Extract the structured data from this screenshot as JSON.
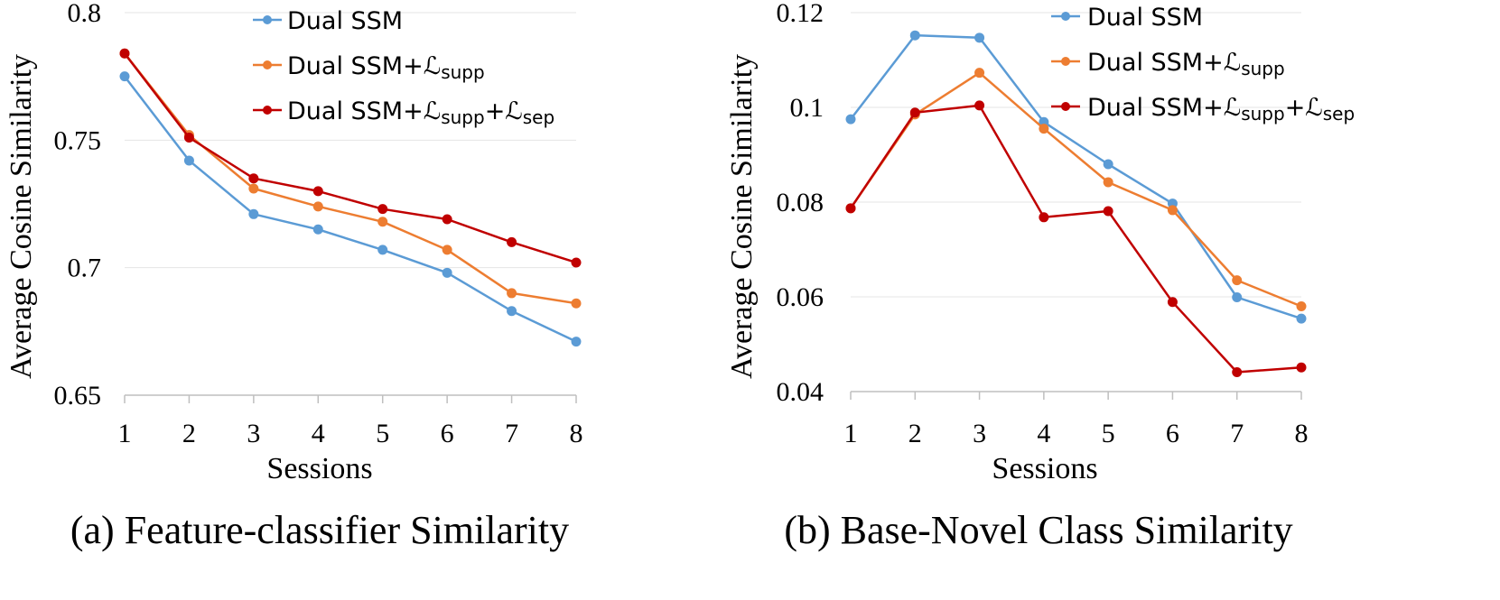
{
  "chart_data": [
    {
      "id": "a",
      "type": "line",
      "title": "(a) Feature-classifier Similarity",
      "xlabel": "Sessions",
      "ylabel": "Average Cosine Similarity",
      "ylim": [
        0.65,
        0.8
      ],
      "yticks": [
        0.65,
        0.7,
        0.75,
        0.8
      ],
      "ytick_labels": [
        "0.65",
        "0.7",
        "0.75",
        "0.8"
      ],
      "categories": [
        "1",
        "2",
        "3",
        "4",
        "5",
        "6",
        "7",
        "8"
      ],
      "grid": true,
      "legend_position": "top-right",
      "series": [
        {
          "name": "Dual SSM",
          "color": "#5b9bd5",
          "values": [
            0.775,
            0.742,
            0.721,
            0.715,
            0.707,
            0.698,
            0.683,
            0.671
          ]
        },
        {
          "name": "Dual SSM+ℒsupp",
          "color": "#ed7d31",
          "values": [
            0.784,
            0.752,
            0.731,
            0.724,
            0.718,
            0.707,
            0.69,
            0.686
          ]
        },
        {
          "name": "Dual SSM+ℒsupp+ℒsep",
          "color": "#c00000",
          "values": [
            0.784,
            0.751,
            0.735,
            0.73,
            0.723,
            0.719,
            0.71,
            0.702
          ]
        }
      ]
    },
    {
      "id": "b",
      "type": "line",
      "title": "(b) Base-Novel Class Similarity",
      "xlabel": "Sessions",
      "ylabel": "Average Cosine Similarity",
      "ylim": [
        0.04,
        0.12
      ],
      "yticks": [
        0.04,
        0.06,
        0.08,
        0.1,
        0.12
      ],
      "ytick_labels": [
        "0.04",
        "0.06",
        "0.08",
        "0.1",
        "0.12"
      ],
      "categories": [
        "1",
        "2",
        "3",
        "4",
        "5",
        "6",
        "7",
        "8"
      ],
      "grid": true,
      "legend_position": "top-right",
      "series": [
        {
          "name": "Dual SSM",
          "color": "#5b9bd5",
          "values": [
            0.0975,
            0.1152,
            0.1147,
            0.0969,
            0.088,
            0.0797,
            0.0599,
            0.0554
          ]
        },
        {
          "name": "Dual SSM+ℒsupp",
          "color": "#ed7d31",
          "values": [
            0.0787,
            0.0985,
            0.1073,
            0.0955,
            0.0842,
            0.0783,
            0.0635,
            0.058
          ]
        },
        {
          "name": "Dual SSM+ℒsupp+ℒsep",
          "color": "#c00000",
          "values": [
            0.0787,
            0.0989,
            0.1004,
            0.0768,
            0.0781,
            0.0589,
            0.0441,
            0.0451
          ]
        }
      ]
    }
  ]
}
